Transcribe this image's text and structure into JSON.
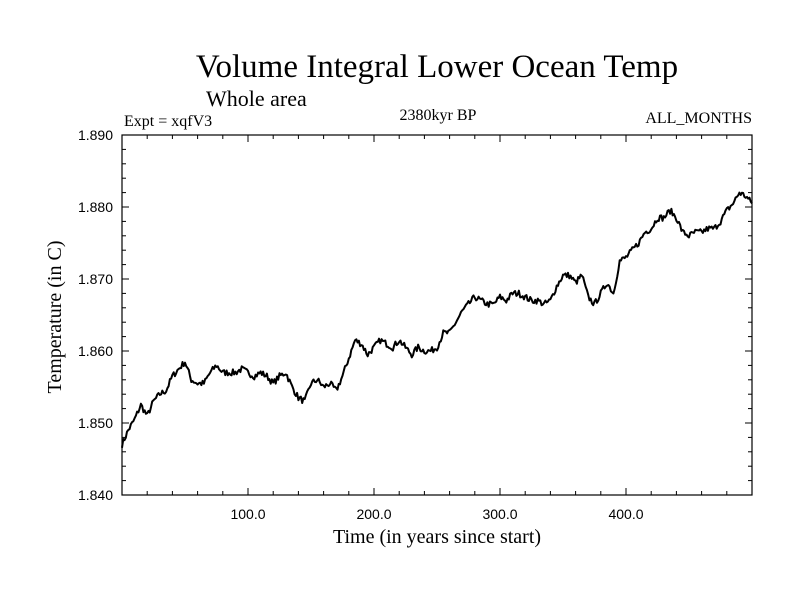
{
  "chart_data": {
    "type": "line",
    "title": "Volume Integral Lower Ocean Temp",
    "subtitle": "Whole area",
    "experiment": "Expt = xqfV3",
    "period": "2380kyr BP",
    "months": "ALL_MONTHS",
    "xlabel": "Time (in years since start)",
    "ylabel": "Temperature (in C)",
    "xlim": [
      0,
      500
    ],
    "ylim": [
      1.84,
      1.89
    ],
    "xticks": [
      100,
      200,
      300,
      400
    ],
    "xtick_labels": [
      "100.0",
      "200.0",
      "300.0",
      "400.0"
    ],
    "yticks": [
      1.84,
      1.85,
      1.86,
      1.87,
      1.88,
      1.89
    ],
    "ytick_labels": [
      "1.840",
      "1.850",
      "1.860",
      "1.870",
      "1.880",
      "1.890"
    ],
    "series": [
      {
        "name": "Temperature",
        "color": "#000000",
        "x": [
          0,
          5,
          10,
          15,
          20,
          25,
          30,
          35,
          40,
          45,
          50,
          55,
          60,
          65,
          70,
          75,
          80,
          85,
          90,
          95,
          100,
          105,
          110,
          115,
          120,
          125,
          130,
          135,
          140,
          145,
          150,
          155,
          160,
          165,
          170,
          175,
          180,
          185,
          190,
          195,
          200,
          205,
          210,
          215,
          220,
          225,
          230,
          235,
          240,
          245,
          250,
          255,
          260,
          265,
          270,
          275,
          280,
          285,
          290,
          295,
          300,
          305,
          310,
          315,
          320,
          325,
          330,
          335,
          340,
          345,
          350,
          355,
          360,
          365,
          370,
          375,
          380,
          385,
          390,
          395,
          400,
          405,
          410,
          415,
          420,
          425,
          430,
          435,
          440,
          445,
          450,
          455,
          460,
          465,
          470,
          475,
          480,
          485,
          490,
          495,
          500
        ],
        "values": [
          1.847,
          1.849,
          1.8505,
          1.8525,
          1.851,
          1.853,
          1.854,
          1.8545,
          1.8565,
          1.8575,
          1.8585,
          1.856,
          1.8555,
          1.8555,
          1.857,
          1.858,
          1.857,
          1.857,
          1.857,
          1.8575,
          1.857,
          1.8565,
          1.857,
          1.8565,
          1.8555,
          1.8565,
          1.857,
          1.855,
          1.8535,
          1.853,
          1.8555,
          1.856,
          1.855,
          1.8555,
          1.8545,
          1.8565,
          1.859,
          1.8615,
          1.861,
          1.8595,
          1.8605,
          1.8615,
          1.861,
          1.8605,
          1.8615,
          1.8605,
          1.8595,
          1.8605,
          1.86,
          1.86,
          1.8605,
          1.8625,
          1.8625,
          1.864,
          1.8655,
          1.8665,
          1.8675,
          1.867,
          1.8665,
          1.8665,
          1.8675,
          1.867,
          1.868,
          1.868,
          1.8675,
          1.867,
          1.867,
          1.8665,
          1.867,
          1.869,
          1.8705,
          1.8705,
          1.8695,
          1.8705,
          1.8675,
          1.8665,
          1.868,
          1.8695,
          1.868,
          1.8725,
          1.873,
          1.874,
          1.875,
          1.8765,
          1.877,
          1.8785,
          1.8785,
          1.8795,
          1.8785,
          1.8765,
          1.876,
          1.8765,
          1.8765,
          1.877,
          1.877,
          1.878,
          1.8795,
          1.8805,
          1.882,
          1.8815,
          1.8805
        ]
      }
    ]
  }
}
